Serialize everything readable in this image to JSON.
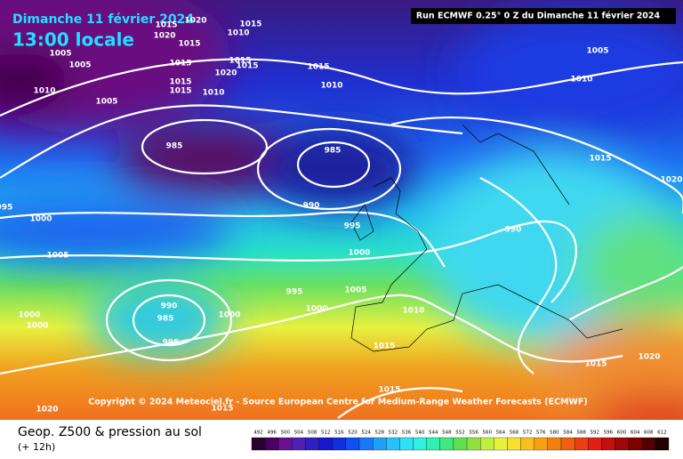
{
  "header": {
    "date": "Dimanche 11 février 2024",
    "time": "13:00 locale",
    "run": "Run ECMWF 0.25° 0 Z du Dimanche 11 février 2024"
  },
  "copyright": "Copyright © 2024 Meteociel.fr - Source European Centre for Medium-Range Weather Forecasts (ECMWF)",
  "footer": {
    "title": "Geop. Z500 & pression au sol",
    "lead": "(+ 12h)"
  },
  "isobar_labels": [
    1020,
    1015,
    1010,
    1015,
    1020,
    1015,
    1005,
    1005,
    1015,
    1015,
    1015,
    1015,
    1005,
    1020,
    1015,
    1015,
    1010,
    1010,
    1010,
    1010,
    1005,
    985,
    985,
    1015,
    1020,
    990,
    995,
    1000,
    995,
    990,
    1005,
    1000,
    995,
    1005,
    990,
    985,
    1000,
    1000,
    1000,
    1000,
    1010,
    995,
    1015,
    1015,
    1020,
    1015,
    1015,
    1020
  ],
  "legend": {
    "values": [
      492,
      496,
      500,
      504,
      508,
      512,
      516,
      520,
      524,
      528,
      532,
      536,
      540,
      544,
      548,
      552,
      556,
      560,
      564,
      568,
      572,
      576,
      580,
      584,
      588,
      592,
      596,
      600,
      604,
      608,
      612
    ],
    "colors": [
      "#2a0030",
      "#4a0060",
      "#6a1090",
      "#5020b0",
      "#3020c0",
      "#1818d0",
      "#1030e0",
      "#1050f0",
      "#1878f8",
      "#20a0f8",
      "#28c0f8",
      "#30e0f8",
      "#30f0e0",
      "#30f0b0",
      "#40e880",
      "#60e050",
      "#90e040",
      "#c0f040",
      "#e8f040",
      "#f8e030",
      "#f8c020",
      "#f8a010",
      "#f08010",
      "#f06010",
      "#e84010",
      "#e02010",
      "#c01010",
      "#a00808",
      "#800000",
      "#500000",
      "#200000"
    ]
  }
}
